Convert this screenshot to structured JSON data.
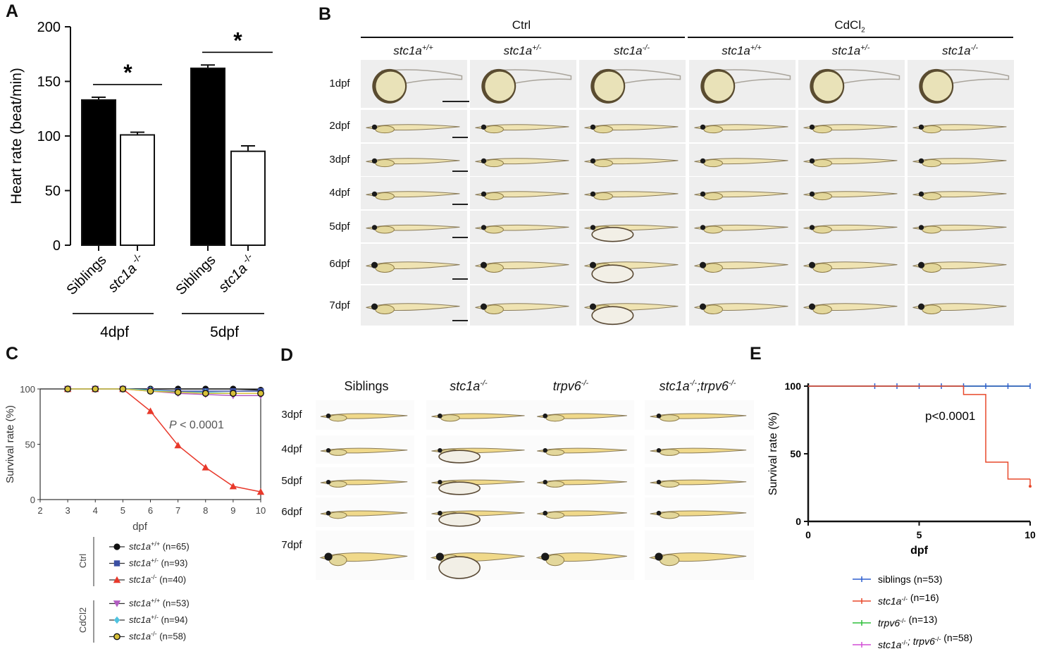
{
  "panel_labels": [
    "A",
    "B",
    "C",
    "D",
    "E"
  ],
  "chart_data": [
    {
      "panel": "A",
      "type": "bar",
      "title": "",
      "ylabel": "Heart rate  (beat/min)",
      "ylim": [
        0,
        200
      ],
      "yticks": [
        "0",
        "50",
        "100",
        "150",
        "200"
      ],
      "categories": [
        "Siblings",
        "stc1a -/-",
        "Siblings",
        "stc1a -/-"
      ],
      "cat_main": [
        "Siblings",
        "stc1a",
        "Siblings",
        "stc1a"
      ],
      "cat_sup": [
        "",
        "-/-",
        "",
        "-/-"
      ],
      "values": [
        133,
        101,
        162,
        86
      ],
      "errors": [
        2.5,
        2.5,
        3,
        5
      ],
      "fills": [
        "black",
        "white",
        "black",
        "white"
      ],
      "groups": [
        {
          "label": "4dpf"
        },
        {
          "label": "5dpf"
        }
      ],
      "significance": [
        "*",
        "*"
      ]
    },
    {
      "panel": "C",
      "type": "line",
      "ylabel": "Survival rate (%)",
      "xlabel": "dpf",
      "xlim": [
        2,
        10
      ],
      "ylim": [
        0,
        100
      ],
      "xticks": [
        "2",
        "3",
        "4",
        "5",
        "6",
        "7",
        "8",
        "9",
        "10"
      ],
      "yticks": [
        "0",
        "50",
        "100"
      ],
      "annotation_p": "P",
      "annotation_rest": " < 0.0001",
      "legend_groups": [
        "Ctrl",
        "CdCl2"
      ],
      "series": [
        {
          "name": "stc1a+/+ (n=65)",
          "main": "stc1a",
          "sup": "+/+",
          "n": "(n=65)",
          "group": "Ctrl",
          "marker": "circle",
          "color": "#111111",
          "x": [
            3,
            4,
            5,
            6,
            7,
            8,
            9,
            10
          ],
          "y": [
            100,
            100,
            100,
            100,
            100,
            100,
            100,
            99
          ]
        },
        {
          "name": "stc1a+/- (n=93)",
          "main": "stc1a",
          "sup": "+/-",
          "n": "(n=93)",
          "group": "Ctrl",
          "marker": "square",
          "color": "#3b4fa3",
          "x": [
            3,
            4,
            5,
            6,
            7,
            8,
            9,
            10
          ],
          "y": [
            100,
            100,
            100,
            99,
            98,
            98,
            98,
            98
          ]
        },
        {
          "name": "stc1a-/- (n=40)",
          "main": "stc1a",
          "sup": "-/-",
          "n": "(n=40)",
          "group": "Ctrl",
          "marker": "triangle",
          "color": "#e8392b",
          "x": [
            3,
            4,
            5,
            6,
            7,
            8,
            9,
            10
          ],
          "y": [
            100,
            100,
            100,
            80,
            49,
            29,
            12,
            7
          ]
        },
        {
          "name": "stc1a+/+ (n=53)",
          "main": "stc1a",
          "sup": "+/+",
          "n": "(n=53)",
          "group": "CdCl2",
          "marker": "triangle-down",
          "color": "#b25cc2",
          "x": [
            3,
            4,
            5,
            6,
            7,
            8,
            9,
            10
          ],
          "y": [
            100,
            100,
            100,
            98,
            96,
            95,
            94,
            94
          ]
        },
        {
          "name": "stc1a+/- (n=94)",
          "main": "stc1a",
          "sup": "+/-",
          "n": "(n=94)",
          "group": "CdCl2",
          "marker": "diamond",
          "color": "#4fc3e0",
          "x": [
            3,
            4,
            5,
            6,
            7,
            8,
            9,
            10
          ],
          "y": [
            100,
            100,
            100,
            99,
            97,
            97,
            96,
            96
          ]
        },
        {
          "name": "stc1a-/- (n=58)",
          "main": "stc1a",
          "sup": "-/-",
          "n": "(n=58)",
          "group": "CdCl2",
          "marker": "circle-open",
          "color": "#d8c13a",
          "x": [
            3,
            4,
            5,
            6,
            7,
            8,
            9,
            10
          ],
          "y": [
            100,
            100,
            100,
            98,
            97,
            96,
            96,
            96
          ]
        }
      ]
    },
    {
      "panel": "E",
      "type": "line",
      "ylabel": "Survival rate (%)",
      "xlabel": "dpf",
      "xlim": [
        0,
        10
      ],
      "ylim": [
        0,
        100
      ],
      "xticks": [
        "0",
        "5",
        "10"
      ],
      "yticks": [
        "0",
        "50",
        "100"
      ],
      "annotation": "p<0.0001",
      "series": [
        {
          "name": "siblings (n=53)",
          "parts": [
            [
              "siblings",
              ""
            ],
            [
              " (n=53)",
              ""
            ]
          ],
          "color": "#2e5fcf",
          "x": [
            0,
            10
          ],
          "y": [
            100,
            100
          ],
          "censor": [
            3,
            4,
            5,
            6,
            7,
            8,
            9,
            10
          ]
        },
        {
          "name": "stc1a-/- (n=16)",
          "parts": [
            [
              "stc1a",
              "-/-"
            ],
            [
              " (n=16)",
              ""
            ]
          ],
          "color": "#e8492b",
          "x": [
            0,
            7,
            7,
            8,
            8,
            9,
            9,
            10
          ],
          "y": [
            100,
            100,
            93.8,
            93.8,
            43.8,
            43.8,
            31.3,
            31.3
          ],
          "final": 26
        },
        {
          "name": "trpv6-/- (n=13)",
          "parts": [
            [
              "trpv6",
              "-/-"
            ],
            [
              " (n=13)",
              ""
            ]
          ],
          "color": "#2fbf3b",
          "x": [
            0,
            10
          ],
          "y": [
            100,
            100
          ],
          "censor": []
        },
        {
          "name": "stc1a-/-; trpv6-/- (n=58)",
          "parts": [
            [
              "stc1a",
              "-/-"
            ],
            [
              "; trpv6",
              "-/-"
            ],
            [
              " (n=58)",
              ""
            ]
          ],
          "color": "#d24fd6",
          "x": [
            0,
            10
          ],
          "y": [
            100,
            100
          ],
          "censor": []
        }
      ]
    }
  ],
  "panel_b": {
    "conditions": [
      "Ctrl",
      "CdCl"
    ],
    "condition_sub": "2",
    "genotypes": [
      {
        "main": "stc1a",
        "sup": "+/+"
      },
      {
        "main": "stc1a",
        "sup": "+/-"
      },
      {
        "main": "stc1a",
        "sup": "-/-"
      },
      {
        "main": "stc1a",
        "sup": "+/+"
      },
      {
        "main": "stc1a",
        "sup": "+/-"
      },
      {
        "main": "stc1a",
        "sup": "-/-"
      }
    ],
    "rows": [
      "1dpf",
      "2dpf",
      "3dpf",
      "4dpf",
      "5dpf",
      "6dpf",
      "7dpf"
    ]
  },
  "panel_d": {
    "columns": [
      {
        "main": "Siblings",
        "sup": "",
        "italic": false
      },
      {
        "main": "stc1a",
        "sup": "-/-",
        "italic": true
      },
      {
        "main": "trpv6",
        "sup": "-/-",
        "italic": true
      },
      {
        "main": "stc1a",
        "sup": "-/-",
        "main2": ";trpv6",
        "sup2": "-/-",
        "italic": true
      }
    ],
    "rows": [
      "3dpf",
      "4dpf",
      "5dpf",
      "6dpf",
      "7dpf"
    ]
  }
}
